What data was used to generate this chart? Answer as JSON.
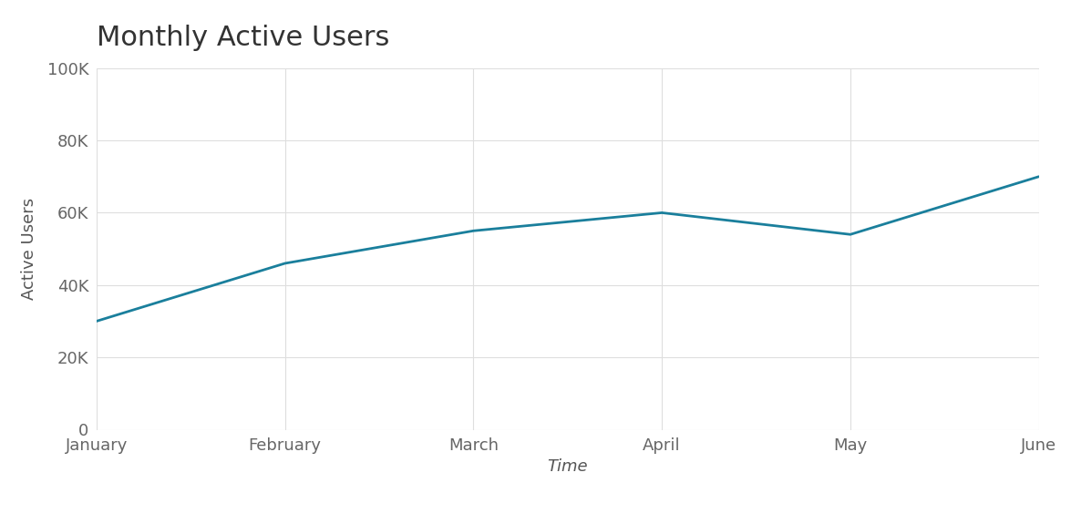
{
  "title": "Monthly Active Users",
  "xlabel": "Time",
  "ylabel": "Active Users",
  "months": [
    "January",
    "February",
    "March",
    "April",
    "May",
    "June"
  ],
  "values": [
    30000,
    46000,
    55000,
    60000,
    54000,
    70000
  ],
  "line_color": "#1a7f9c",
  "line_width": 2.0,
  "ylim": [
    0,
    100000
  ],
  "yticks": [
    0,
    20000,
    40000,
    60000,
    80000,
    100000
  ],
  "ytick_labels": [
    "0",
    "20K",
    "40K",
    "60K",
    "80K",
    "100K"
  ],
  "background_color": "#ffffff",
  "grid_color": "#dedede",
  "title_fontsize": 22,
  "axis_label_fontsize": 13,
  "tick_fontsize": 13,
  "title_color": "#333333",
  "tick_color": "#666666",
  "axis_label_color": "#555555"
}
